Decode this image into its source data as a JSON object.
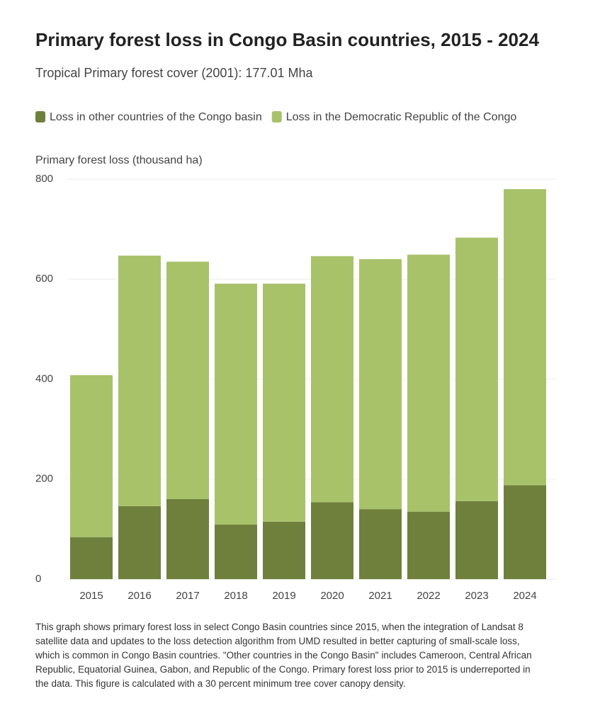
{
  "chart_data": {
    "type": "stacked_bar",
    "title": "Primary forest loss in Congo Basin countries, 2015 - 2024",
    "subtitle": "Tropical Primary forest cover (2001): 177.01 Mha",
    "y_label": "Primary forest loss (thousand ha)",
    "categories": [
      "2015",
      "2016",
      "2017",
      "2018",
      "2019",
      "2020",
      "2021",
      "2022",
      "2023",
      "2024"
    ],
    "series": [
      {
        "name": "Loss in other countries of the Congo basin",
        "color": "#6e803c",
        "values": [
          84,
          146,
          160,
          109,
          115,
          154,
          140,
          135,
          156,
          188
        ]
      },
      {
        "name": "Loss in the Democratic Republic of the Congo",
        "color": "#a8c26a",
        "values": [
          324,
          501,
          475,
          482,
          476,
          492,
          500,
          514,
          527,
          592
        ]
      }
    ],
    "ylim": [
      0,
      800
    ],
    "yticks": [
      0,
      200,
      400,
      600,
      800
    ],
    "grid": true,
    "note": "This graph shows primary forest loss in select Congo Basin countries since 2015, when the integration of Landsat 8 satellite data and updates to the loss detection algorithm from UMD resulted in better capturing of small-scale loss, which is common in Congo Basin countries. \"Other countries in the Congo Basin\" includes Cameroon, Central African Republic, Equatorial Guinea, Gabon, and Republic of the Congo. Primary forest loss prior to 2015 is underreported in the data. This figure is calculated with a 30 percent minimum tree cover canopy density."
  }
}
